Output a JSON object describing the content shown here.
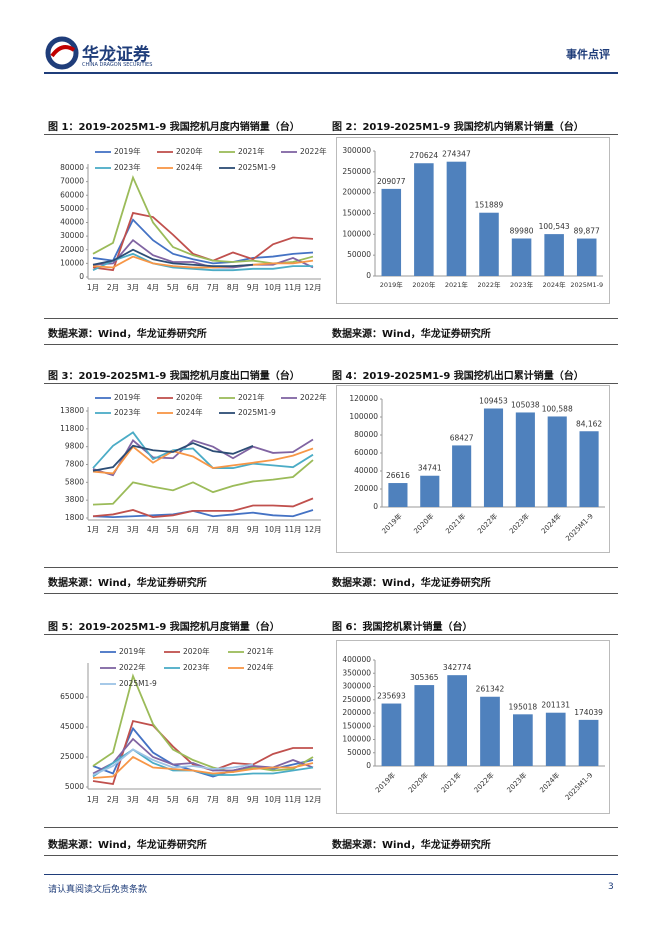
{
  "header": {
    "brand": "华龙证券",
    "brand_en": "CHINA DRAGON SECURITIES",
    "section": "事件点评"
  },
  "figures": [
    {
      "title": "图 1：2019-2025M1-9 我国挖机月度内销销量（台）",
      "source": "数据来源：Wind，华龙证券研究所",
      "chart": {
        "type": "line",
        "categories": [
          "1月",
          "2月",
          "3月",
          "4月",
          "5月",
          "6月",
          "7月",
          "8月",
          "9月",
          "10月",
          "11月",
          "12月"
        ],
        "ylim": [
          0,
          80000
        ],
        "yticks": [
          0,
          10000,
          20000,
          30000,
          40000,
          50000,
          60000,
          70000,
          80000
        ],
        "series": [
          {
            "name": "2019年",
            "color": "#4472c4",
            "values": [
              14000,
              12000,
              42000,
              27000,
              17000,
              13000,
              10000,
              11000,
              14000,
              15000,
              17000,
              18000
            ]
          },
          {
            "name": "2020年",
            "color": "#c0504d",
            "values": [
              7000,
              5000,
              47000,
              44000,
              31000,
              17000,
              12000,
              18000,
              13000,
              24000,
              29000,
              28000
            ]
          },
          {
            "name": "2021年",
            "color": "#9bbb59",
            "values": [
              17000,
              25000,
              73000,
              40000,
              22000,
              16000,
              12000,
              11000,
              12000,
              10000,
              11000,
              15000
            ]
          },
          {
            "name": "2022年",
            "color": "#8064a2",
            "values": [
              9000,
              10000,
              27000,
              16000,
              11000,
              11000,
              7000,
              7000,
              9000,
              9000,
              14000,
              7000
            ]
          },
          {
            "name": "2023年",
            "color": "#4bacc6",
            "values": [
              5000,
              12000,
              17000,
              10000,
              7000,
              6000,
              5000,
              5000,
              6000,
              6000,
              8000,
              8000
            ]
          },
          {
            "name": "2024年",
            "color": "#f79646",
            "values": [
              8000,
              7000,
              15000,
              10000,
              8000,
              7000,
              7000,
              8000,
              9000,
              10000,
              10000,
              12000
            ]
          },
          {
            "name": "2025M1-9",
            "color": "#2c4d75",
            "values": [
              9000,
              12000,
              20000,
              13000,
              10000,
              9000,
              8000,
              8000,
              9000,
              null,
              null,
              null
            ]
          }
        ]
      }
    },
    {
      "title": "图 2：2019-2025M1-9 我国挖机内销累计销量（台）",
      "source": "数据来源：Wind，华龙证券研究所",
      "chart": {
        "type": "bar",
        "color": "#4f81bd",
        "categories": [
          "2019年",
          "2020年",
          "2021年",
          "2022年",
          "2023年",
          "2024年",
          "2025M1-9"
        ],
        "values": [
          209077,
          270624,
          274347,
          151889,
          89980,
          100543,
          89877
        ],
        "value_labels": [
          "209077",
          "270624",
          "274347",
          "151889",
          "89980",
          "100,543",
          "89,877"
        ],
        "ylim": [
          0,
          300000
        ],
        "yticks": [
          0,
          50000,
          100000,
          150000,
          200000,
          250000,
          300000
        ]
      }
    },
    {
      "title": "图 3：2019-2025M1-9 我国挖机月度出口销量（台）",
      "source": "数据来源：Wind，华龙证券研究所",
      "chart": {
        "type": "line",
        "categories": [
          "1月",
          "2月",
          "3月",
          "4月",
          "5月",
          "6月",
          "7月",
          "8月",
          "9月",
          "10月",
          "11月",
          "12月"
        ],
        "ylim": [
          1800,
          13800
        ],
        "yticks": [
          1800,
          3800,
          5800,
          7800,
          9800,
          11800,
          13800
        ],
        "series": [
          {
            "name": "2019年",
            "color": "#4472c4",
            "values": [
              2000,
              1900,
              2000,
              2100,
              2200,
              2600,
              2000,
              2200,
              2400,
              2100,
              2000,
              2700
            ]
          },
          {
            "name": "2020年",
            "color": "#c0504d",
            "values": [
              2000,
              2200,
              2700,
              1900,
              2100,
              2600,
              2600,
              2600,
              3200,
              3200,
              3100,
              4000
            ]
          },
          {
            "name": "2021年",
            "color": "#9bbb59",
            "values": [
              3300,
              3400,
              5800,
              5300,
              4900,
              5800,
              4700,
              5400,
              5900,
              6100,
              6400,
              8300
            ]
          },
          {
            "name": "2022年",
            "color": "#8064a2",
            "values": [
              7300,
              6600,
              10500,
              8600,
              8500,
              10500,
              9800,
              8500,
              9800,
              9100,
              9200,
              10600
            ]
          },
          {
            "name": "2023年",
            "color": "#4bacc6",
            "values": [
              7400,
              9900,
              11400,
              8400,
              9400,
              9600,
              7400,
              7400,
              7900,
              7700,
              7500,
              8900
            ]
          },
          {
            "name": "2024年",
            "color": "#f79646",
            "values": [
              7000,
              6800,
              9800,
              8000,
              9300,
              8700,
              7400,
              7700,
              8000,
              8300,
              8800,
              9600
            ]
          },
          {
            "name": "2025M1-9",
            "color": "#2c4d75",
            "values": [
              7100,
              7500,
              9900,
              9400,
              9200,
              10200,
              9300,
              9000,
              9900,
              null,
              null,
              null
            ]
          }
        ]
      }
    },
    {
      "title": "图 4：2019-2025M1-9 我国挖机出口累计销量（台）",
      "source": "数据来源：Wind，华龙证券研究所",
      "chart": {
        "type": "bar",
        "color": "#4f81bd",
        "categories": [
          "2019年",
          "2020年",
          "2021年",
          "2022年",
          "2023年",
          "2024年",
          "2025M1-9"
        ],
        "values": [
          26616,
          34741,
          68427,
          109453,
          105038,
          100588,
          84162
        ],
        "value_labels": [
          "26616",
          "34741",
          "68427",
          "109453",
          "105038",
          "100,588",
          "84,162"
        ],
        "ylim": [
          0,
          120000
        ],
        "yticks": [
          0,
          20000,
          40000,
          60000,
          80000,
          100000,
          120000
        ]
      }
    },
    {
      "title": "图 5：2019-2025M1-9 我国挖机月度销量（台）",
      "source": "数据来源：Wind，华龙证券研究所",
      "chart": {
        "type": "line",
        "categories": [
          "1月",
          "2月",
          "3月",
          "4月",
          "5月",
          "6月",
          "7月",
          "8月",
          "9月",
          "10月",
          "11月",
          "12月"
        ],
        "ylim": [
          5000,
          85000
        ],
        "yticks": [
          5000,
          25000,
          45000,
          65000
        ],
        "series": [
          {
            "name": "2019年",
            "color": "#4472c4",
            "values": [
              19000,
              14000,
              44000,
              28000,
              20000,
              16000,
              12000,
              16000,
              19000,
              17000,
              20000,
              23000
            ]
          },
          {
            "name": "2020年",
            "color": "#c0504d",
            "values": [
              9000,
              7000,
              49000,
              46000,
              32000,
              20000,
              16000,
              21000,
              20000,
              27000,
              31000,
              31000
            ]
          },
          {
            "name": "2021年",
            "color": "#9bbb59",
            "values": [
              19000,
              28000,
              79000,
              47000,
              30000,
              23000,
              18000,
              15000,
              18000,
              16000,
              17000,
              25000
            ]
          },
          {
            "name": "2022年",
            "color": "#8064a2",
            "values": [
              14000,
              21000,
              37000,
              25000,
              20000,
              21000,
              16000,
              16000,
              19000,
              18000,
              23000,
              18000
            ]
          },
          {
            "name": "2023年",
            "color": "#4bacc6",
            "values": [
              12000,
              21000,
              30000,
              21000,
              16000,
              16000,
              13000,
              13000,
              14000,
              14000,
              16000,
              18000
            ]
          },
          {
            "name": "2024年",
            "color": "#f79646",
            "values": [
              11000,
              12000,
              25000,
              18000,
              17000,
              16000,
              14000,
              15000,
              17000,
              18000,
              18000,
              21000
            ]
          },
          {
            "name": "2025M1-9",
            "color": "#9dc3e6",
            "values": [
              13000,
              19000,
              30000,
              23000,
              18000,
              19000,
              17000,
              18000,
              20000,
              null,
              null,
              null
            ]
          }
        ]
      }
    },
    {
      "title": "图 6：我国挖机累计销量（台）",
      "source": "数据来源：Wind，华龙证券研究所",
      "chart": {
        "type": "bar",
        "color": "#4f81bd",
        "categories": [
          "2019年",
          "2020年",
          "2021年",
          "2022年",
          "2023年",
          "2024年",
          "2025M1-9"
        ],
        "values": [
          235693,
          305365,
          342774,
          261342,
          195018,
          201131,
          174039
        ],
        "ylim": [
          0,
          400000
        ],
        "yticks": [
          0,
          50000,
          100000,
          150000,
          200000,
          250000,
          300000,
          350000,
          400000
        ]
      }
    }
  ],
  "footer": {
    "disclaimer": "请认真阅读文后免责条款",
    "page": 3
  }
}
